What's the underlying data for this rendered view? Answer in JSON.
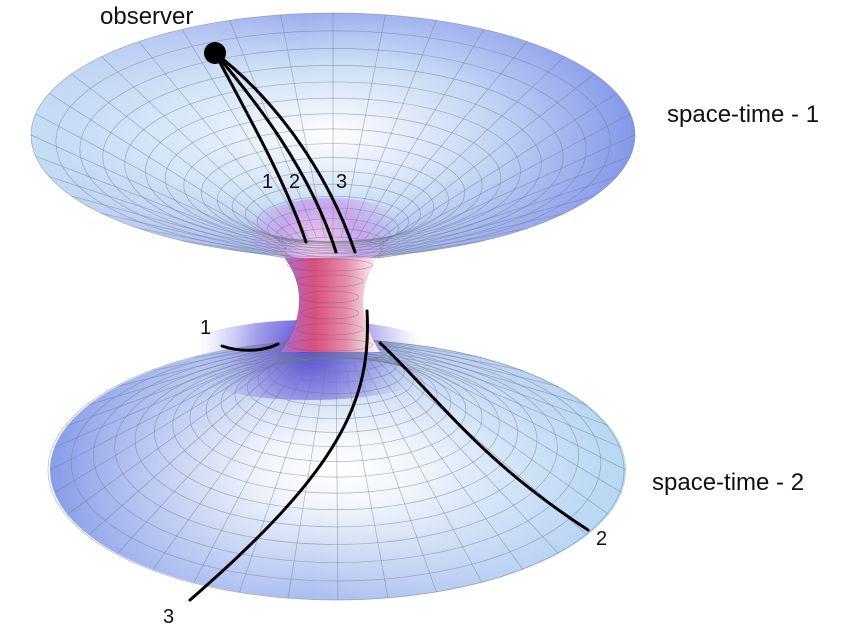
{
  "labels": {
    "observer": "observer",
    "spacetime_1": "space-time - 1",
    "spacetime_2": "space-time - 2"
  },
  "path_numbers": {
    "top": [
      "1",
      "2",
      "3"
    ],
    "bottom": [
      "1",
      "2",
      "3"
    ]
  },
  "colors": {
    "surface_light": "#eaf6fb",
    "surface_blue": "#7f93ea",
    "throat_pink": "#d9507c",
    "throat_violet": "#5d55d4",
    "grid": "#6f7b8c",
    "path": "#000000"
  }
}
